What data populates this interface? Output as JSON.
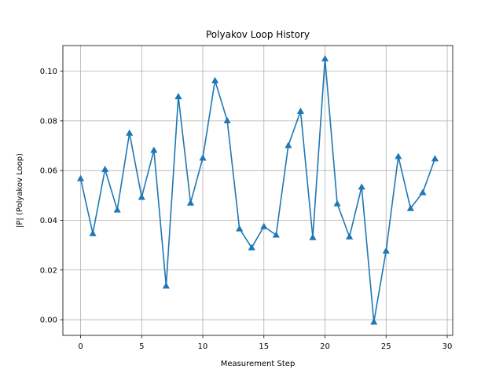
{
  "chart_data": {
    "type": "line",
    "title": "Polyakov Loop History",
    "xlabel": "Measurement Step",
    "ylabel": "|P| (Polyakov Loop)",
    "xlim": [
      -1.45,
      30.45
    ],
    "ylim": [
      -0.0063,
      0.1103
    ],
    "xticks": [
      0,
      5,
      10,
      15,
      20,
      25,
      30
    ],
    "yticks": [
      0.0,
      0.02,
      0.04,
      0.06,
      0.08,
      0.1
    ],
    "ytick_labels": [
      "0.00",
      "0.02",
      "0.04",
      "0.06",
      "0.08",
      "0.10"
    ],
    "grid": true,
    "marker": "triangle-up",
    "color": "#1f77b4",
    "x": [
      0,
      1,
      2,
      3,
      4,
      5,
      6,
      7,
      8,
      9,
      10,
      11,
      12,
      13,
      14,
      15,
      16,
      17,
      18,
      19,
      20,
      21,
      22,
      23,
      24,
      25,
      26,
      27,
      28,
      29
    ],
    "values": [
      0.0568,
      0.0347,
      0.0605,
      0.0442,
      0.0751,
      0.0493,
      0.0682,
      0.0136,
      0.0898,
      0.047,
      0.0651,
      0.0962,
      0.0801,
      0.0366,
      0.029,
      0.0375,
      0.0341,
      0.0701,
      0.0839,
      0.0331,
      0.105,
      0.0467,
      0.0334,
      0.0534,
      -0.0009,
      0.0277,
      0.0657,
      0.0448,
      0.0512,
      0.0648
    ]
  }
}
